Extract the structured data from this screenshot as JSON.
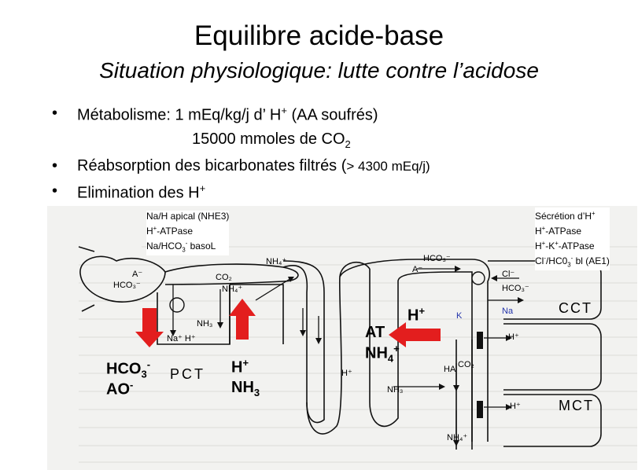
{
  "title": "Equilibre acide-base",
  "subtitle": "Situation physiologique: lutte contre l’acidose",
  "bullets": {
    "b1_line1_a": "Métabolisme: 1 mEq/kg/j d’ H",
    "b1_line1_sup": "+",
    "b1_line1_b": " (AA soufrés)",
    "b1_line2_a": "15000 mmoles de CO",
    "b1_line2_sub": "2",
    "b2_a": "Réabsorption des bicarbonates filtrés (",
    "b2_b": "> 4300 mEq/j)",
    "b3_a": "Elimination des H",
    "b3_sup": "+",
    "marker": "•"
  },
  "diagram": {
    "left_box": {
      "line1": "Na/H apical (NHE3)",
      "line2_a": "H",
      "line2_sup": "+",
      "line2_b": "-ATPase",
      "line3_a": "Na/HCO",
      "line3_sub": "3",
      "line3_sup": "-",
      "line3_b": " basoL"
    },
    "right_box": {
      "line1_a": "Sécrétion d’H",
      "line1_sup": "+",
      "line2_a": "H",
      "line2_sup": "+",
      "line2_b": "-ATPase",
      "line3_a": "H",
      "line3_sup1": "+",
      "line3_b": "-K",
      "line3_sup2": "+",
      "line3_c": "-ATPase",
      "line4_a": "Cl",
      "line4_sup": "-",
      "line4_b": "/HC0",
      "line4_sub": "3",
      "line4_sup2": "-",
      "line4_c": " bl (AE1)"
    },
    "labels": {
      "a_minus_left": "A⁻",
      "hco3_left": "HCO₃⁻",
      "co2_left": "CO₂",
      "nh4_left": "NH₄⁺",
      "nh3_left": "NH₃",
      "na_h": "Na⁺ H⁺",
      "nh4_top": "NH₄⁺",
      "hco3_mid": "HCO₃⁻",
      "a_minus_mid": "A⁻",
      "cl_minus": "Cl⁻",
      "hco3_right": "HCO₃⁻",
      "k": "K",
      "na": "Na",
      "h_cct": "H⁺",
      "h_collect": "H⁺",
      "ha": "HA",
      "co2_right": "CO₂",
      "nh3_collect": "NH₃",
      "h_mct": "H⁺",
      "nh4_bottom": "NH₄⁺",
      "cct": "CCT",
      "mct": "MCT",
      "pct": "PCT"
    },
    "annotations": {
      "hco3_a": "HCO",
      "hco3_sub": "3",
      "hco3_sup": "-",
      "ao_a": "AO",
      "ao_sup": "-",
      "hplus_a": "H",
      "hplus_sup": "+",
      "nh3_a": "NH",
      "nh3_sub": "3",
      "right_h_a": "H",
      "right_h_sup": "+",
      "at": "AT",
      "nh4_a": "NH",
      "nh4_sub": "4",
      "nh4_sup": "+"
    },
    "colors": {
      "arrow_red": "#e31e1e",
      "ink": "#111111",
      "paper": "#f2f2f0"
    }
  }
}
